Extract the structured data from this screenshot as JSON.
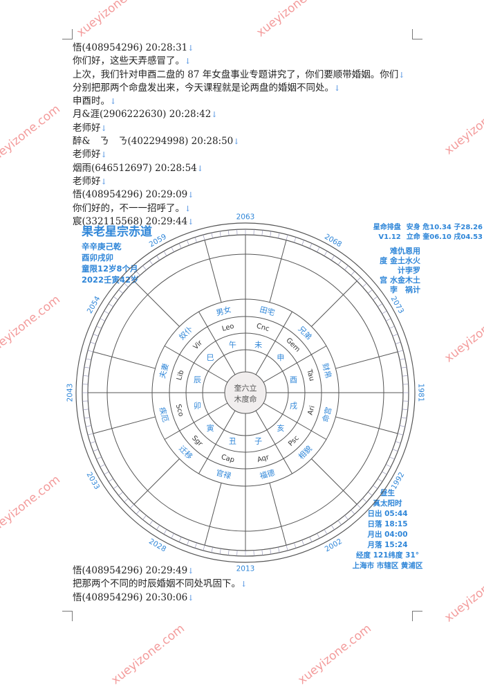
{
  "transcript_top": [
    {
      "text": "悟(408954296) 20:28:31"
    },
    {
      "text": "你们好，这些天弄感冒了。"
    },
    {
      "text": "上次，我们针对申酉二盘的 87 年女盘事业专题讲究了，你们要顺带婚姻。你们"
    },
    {
      "text": "分别把那两个命盘发出来，今天课程就是论两盘的婚姻不同处。"
    },
    {
      "text": "申酉时。"
    },
    {
      "text": "月&涯(2906222630) 20:28:42"
    },
    {
      "text": "老师好"
    },
    {
      "text": "醉&　ㄋ　ㄋ(402294998) 20:28:50"
    },
    {
      "text": "老师好"
    },
    {
      "text": "烟雨(646512697) 20:28:54"
    },
    {
      "text": "老师好"
    },
    {
      "text": "悟(408954296) 20:29:09"
    },
    {
      "text": "你们好的，不一一招呼了。"
    },
    {
      "text": "宸(332115568) 20:29:44"
    }
  ],
  "transcript_bottom": [
    {
      "text": "悟(408954296) 20:29:49"
    },
    {
      "text": "把那两个不同的时辰婚姻不同处巩固下。"
    },
    {
      "text": "悟(408954296) 20:30:06"
    }
  ],
  "paragraph_mark": "↓",
  "watermark": "xueyizone.com",
  "chart": {
    "title": "果老星宗赤道",
    "left_info": [
      "辛辛庚己乾",
      "酉卯戌卯",
      "童限12岁8个月",
      "2022壬寅42岁"
    ],
    "right_header": [
      "星命排盘",
      "V1.12",
      "安身 危10.34 子28.26",
      "立命 奎06.10 戌04.53"
    ],
    "right_info": [
      "难仇恩用",
      "度 金土水火",
      "计孛罗",
      "宫 水金木土",
      "孛　祸计"
    ],
    "bottom_right": [
      "昼生",
      "真太阳时",
      "日出 05:44",
      "日落 18:15",
      "月出 04:00",
      "月落 15:24",
      "经度 121纬度 31°",
      "上海市 市辖区 黄浦区"
    ],
    "center": [
      "奎六立",
      "木度命"
    ],
    "years": [
      "2063",
      "2068",
      "2073",
      "1981",
      "1992",
      "2002",
      "2013",
      "2028",
      "2033",
      "2043",
      "2054",
      "2059"
    ],
    "signs": [
      "Cnc",
      "Gem",
      "Tau",
      "Ari",
      "Psc",
      "Aqr",
      "Cap",
      "Sgr",
      "Sco",
      "Lib",
      "Vir",
      "Leo"
    ],
    "palaces": [
      "田宅",
      "兄弟",
      "财帛",
      "命宫",
      "相貌",
      "福德",
      "官禄",
      "迁移",
      "疾厄",
      "夫妻",
      "奴仆",
      "男女"
    ],
    "branches": [
      "未",
      "申",
      "酉",
      "戌",
      "亥",
      "子",
      "丑",
      "寅",
      "卯",
      "辰",
      "巳",
      "午"
    ],
    "colors": {
      "blue": "#2f86d8",
      "green": "#3aa04a",
      "red": "#e03030",
      "ring": "#555555"
    }
  }
}
